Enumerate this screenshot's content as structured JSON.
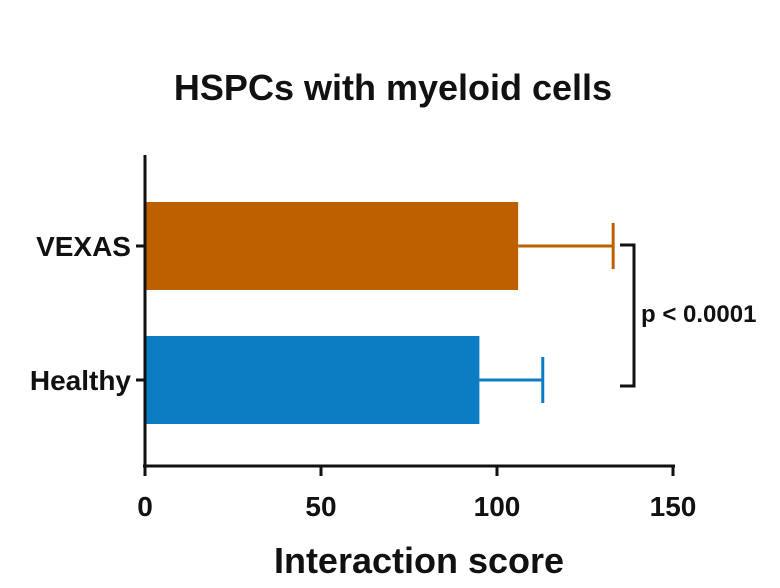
{
  "chart_data": {
    "type": "bar",
    "orientation": "horizontal",
    "title": "HSPCs with myeloid cells",
    "xlabel": "Interaction score",
    "ylabel": "",
    "xlim": [
      0,
      150
    ],
    "xticks": [
      "0",
      "50",
      "100",
      "150"
    ],
    "categories": [
      "VEXAS",
      "Healthy"
    ],
    "values": [
      106,
      95
    ],
    "error_upper": [
      133,
      113
    ],
    "colors": [
      "#BF6000",
      "#0C7DC2"
    ],
    "annotation": "p < 0.0001",
    "grid": false
  }
}
